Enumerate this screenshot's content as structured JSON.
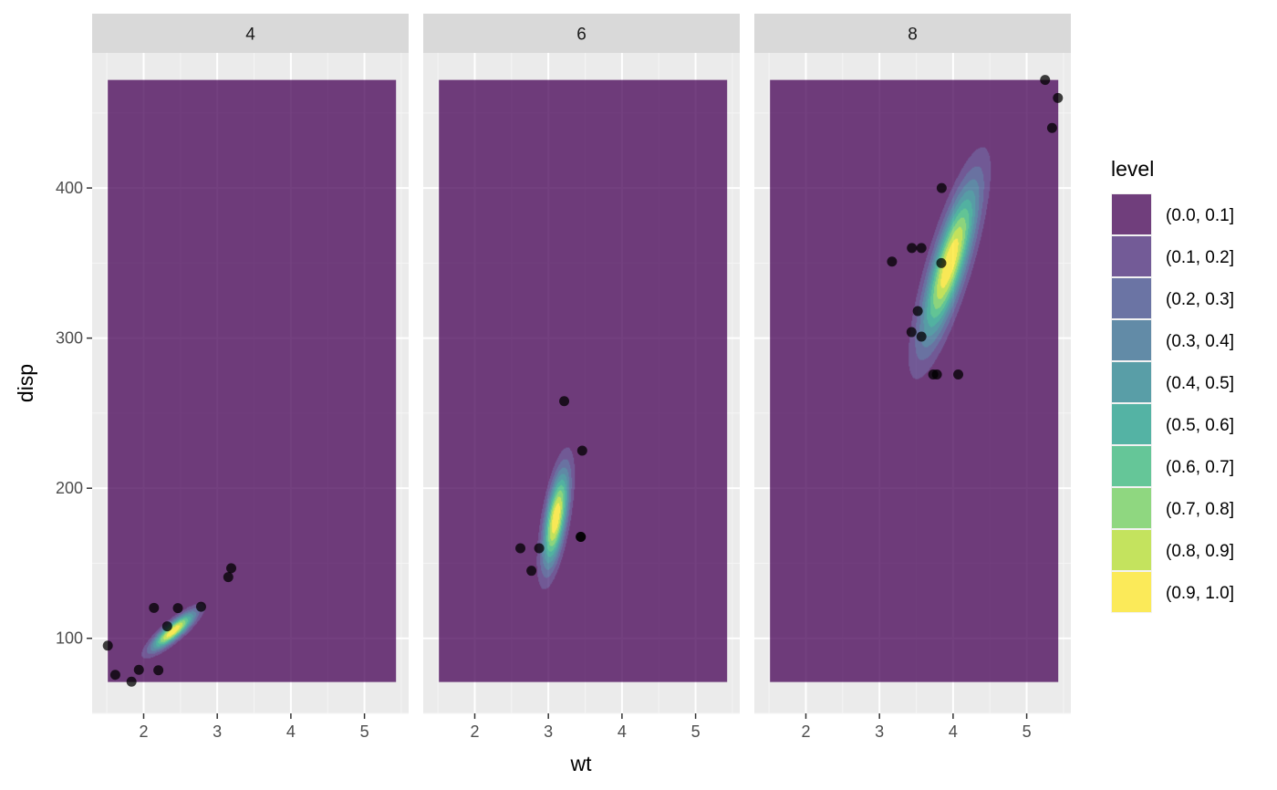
{
  "chart_data": {
    "type": "contour",
    "facet_variable_values": [
      "4",
      "6",
      "8"
    ],
    "xlabel": "wt",
    "ylabel": "disp",
    "xlim": [
      1.3,
      5.6
    ],
    "ylim": [
      50,
      490
    ],
    "x_ticks": [
      2,
      3,
      4,
      5
    ],
    "y_ticks": [
      100,
      200,
      300,
      400
    ],
    "grid": true,
    "legend": {
      "title": "level",
      "position": "right",
      "entries": [
        "(0.0, 0.1]",
        "(0.1, 0.2]",
        "(0.2, 0.3]",
        "(0.3, 0.4]",
        "(0.4, 0.5]",
        "(0.5, 0.6]",
        "(0.6, 0.7]",
        "(0.7, 0.8]",
        "(0.8, 0.9]",
        "(0.9, 1.0]"
      ],
      "colors": [
        "#440154",
        "#482878",
        "#3E4A89",
        "#31688E",
        "#26828E",
        "#1F9E89",
        "#35B779",
        "#6DCD59",
        "#B4DE2C",
        "#FDE725"
      ]
    },
    "fill_alpha": 0.75,
    "background_range": {
      "x": [
        1.513,
        5.424
      ],
      "y": [
        71.1,
        472
      ]
    },
    "panels": [
      {
        "label": "4",
        "points": [
          {
            "x": 2.32,
            "y": 108
          },
          {
            "x": 3.19,
            "y": 146.7
          },
          {
            "x": 3.15,
            "y": 140.8
          },
          {
            "x": 2.2,
            "y": 78.7
          },
          {
            "x": 1.615,
            "y": 75.7
          },
          {
            "x": 1.835,
            "y": 71.1
          },
          {
            "x": 2.465,
            "y": 120.1
          },
          {
            "x": 1.935,
            "y": 79
          },
          {
            "x": 2.14,
            "y": 120.3
          },
          {
            "x": 1.513,
            "y": 95.1
          },
          {
            "x": 2.78,
            "y": 121
          }
        ],
        "density": {
          "cx": 2.4,
          "cy": 105,
          "sx": 0.2,
          "sy": 8.5,
          "rho": 0.85,
          "extent": 3.4
        }
      },
      {
        "label": "6",
        "points": [
          {
            "x": 2.62,
            "y": 160
          },
          {
            "x": 2.875,
            "y": 160
          },
          {
            "x": 3.215,
            "y": 258
          },
          {
            "x": 3.46,
            "y": 225
          },
          {
            "x": 3.44,
            "y": 167.6
          },
          {
            "x": 3.44,
            "y": 167.6
          },
          {
            "x": 2.77,
            "y": 145
          }
        ],
        "density": {
          "cx": 3.1,
          "cy": 180,
          "sx": 0.12,
          "sy": 22,
          "rho": 0.6,
          "extent": 3.4
        }
      },
      {
        "label": "8",
        "points": [
          {
            "x": 3.44,
            "y": 360
          },
          {
            "x": 3.57,
            "y": 360
          },
          {
            "x": 4.07,
            "y": 275.8
          },
          {
            "x": 3.73,
            "y": 275.8
          },
          {
            "x": 3.78,
            "y": 275.8
          },
          {
            "x": 5.25,
            "y": 472
          },
          {
            "x": 5.424,
            "y": 460
          },
          {
            "x": 5.345,
            "y": 440
          },
          {
            "x": 3.52,
            "y": 318
          },
          {
            "x": 3.435,
            "y": 304
          },
          {
            "x": 3.84,
            "y": 350
          },
          {
            "x": 3.845,
            "y": 400
          },
          {
            "x": 3.17,
            "y": 351
          },
          {
            "x": 3.57,
            "y": 301
          }
        ],
        "density": {
          "cx": 3.95,
          "cy": 350,
          "sx": 0.26,
          "sy": 36,
          "rho": 0.8,
          "extent": 3.6
        }
      }
    ]
  }
}
